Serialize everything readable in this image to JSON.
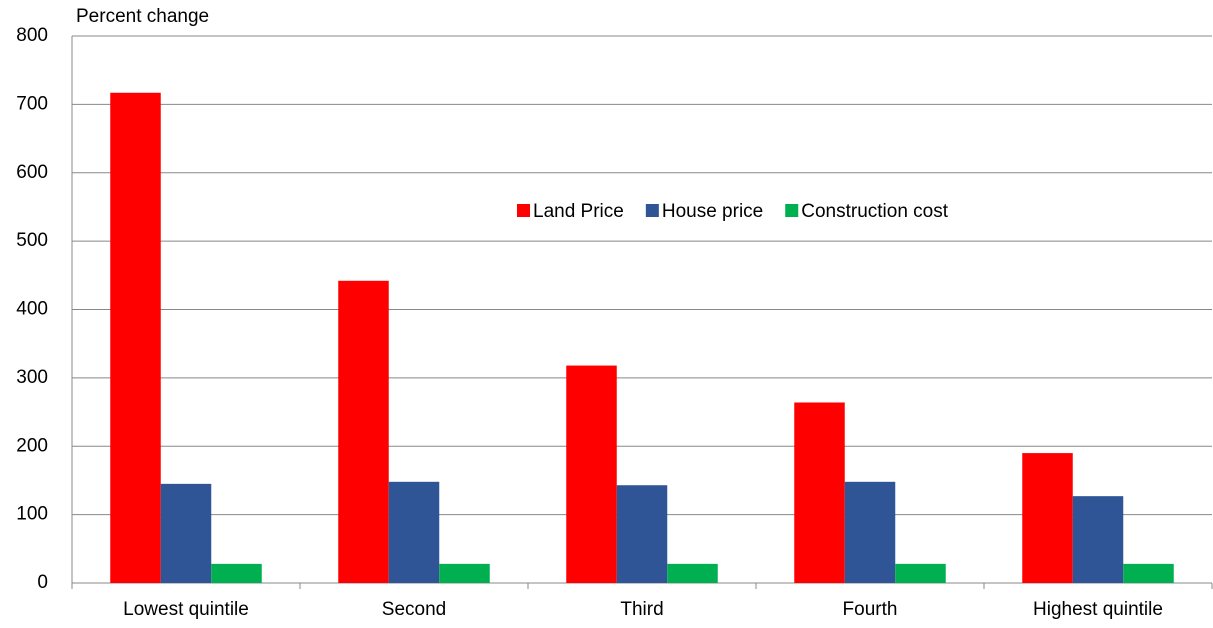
{
  "chart_data": {
    "type": "bar",
    "y_axis_label": "Percent change",
    "categories": [
      "Lowest quintile",
      "Second",
      "Third",
      "Fourth",
      "Highest quintile"
    ],
    "series": [
      {
        "name": "Land Price",
        "color": "#ff0000",
        "values": [
          717,
          442,
          318,
          264,
          190
        ]
      },
      {
        "name": "House price",
        "color": "#2f5597",
        "values": [
          145,
          148,
          143,
          148,
          127
        ]
      },
      {
        "name": "Construction cost",
        "color": "#00b050",
        "values": [
          28,
          28,
          28,
          28,
          28
        ]
      }
    ],
    "ylim": [
      0,
      800
    ],
    "yticks": [
      0,
      100,
      200,
      300,
      400,
      500,
      600,
      700,
      800
    ],
    "grid": true,
    "legend": "center"
  }
}
